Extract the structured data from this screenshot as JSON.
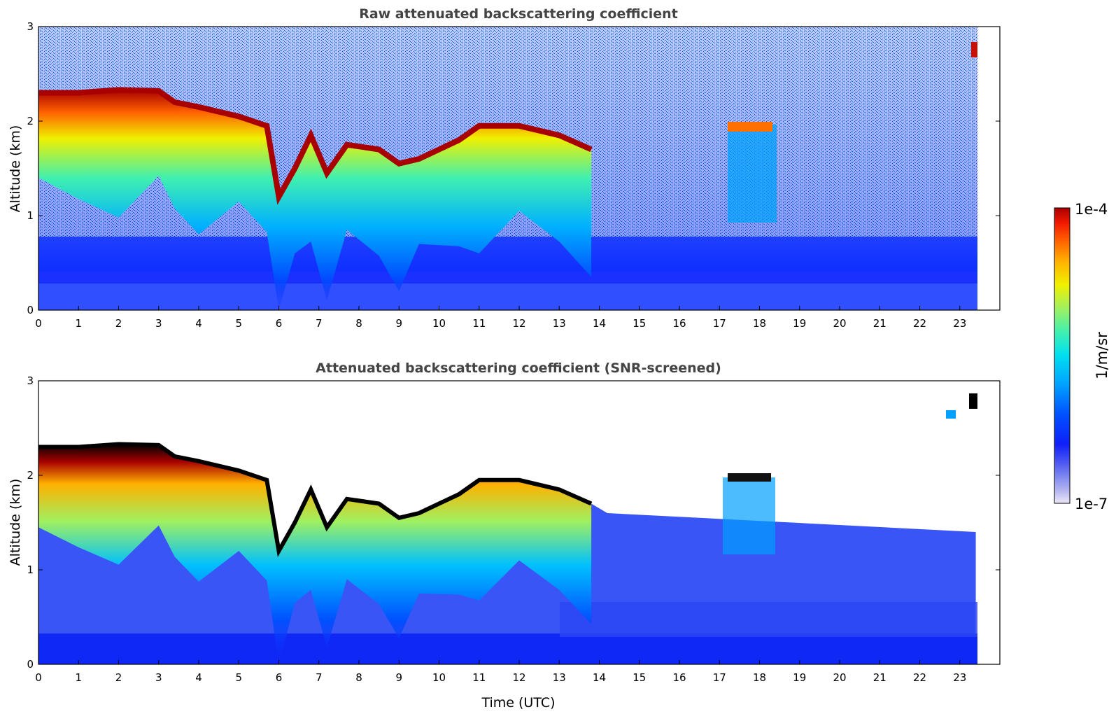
{
  "chart_data": [
    {
      "type": "heatmap",
      "title": "Raw attenuated backscattering coefficient",
      "xlabel": "",
      "ylabel": "Altitude (km)",
      "xlim": [
        0,
        24
      ],
      "ylim": [
        0,
        3
      ],
      "x_ticks": [
        "0",
        "1",
        "2",
        "3",
        "4",
        "5",
        "6",
        "7",
        "8",
        "9",
        "10",
        "11",
        "12",
        "13",
        "14",
        "15",
        "16",
        "17",
        "18",
        "19",
        "20",
        "21",
        "22",
        "23"
      ],
      "y_ticks": [
        "0",
        "1",
        "2",
        "3"
      ],
      "data_end_hour": 23.4,
      "cloud_top_km": [
        [
          0,
          2.3
        ],
        [
          1,
          2.3
        ],
        [
          2,
          2.33
        ],
        [
          3,
          2.32
        ],
        [
          3.4,
          2.2
        ],
        [
          4,
          2.15
        ],
        [
          5,
          2.05
        ],
        [
          5.7,
          1.95
        ],
        [
          6.0,
          1.2
        ],
        [
          6.4,
          1.5
        ],
        [
          6.8,
          1.85
        ],
        [
          7.2,
          1.45
        ],
        [
          7.7,
          1.75
        ],
        [
          8.5,
          1.7
        ],
        [
          9.0,
          1.55
        ],
        [
          9.5,
          1.6
        ],
        [
          10.5,
          1.8
        ],
        [
          11,
          1.95
        ],
        [
          12,
          1.95
        ],
        [
          13,
          1.85
        ],
        [
          13.8,
          1.7
        ]
      ],
      "aerosol_top_km": 0.4,
      "noise": "high"
    },
    {
      "type": "heatmap",
      "title": "Attenuated backscattering coefficient (SNR-screened)",
      "xlabel": "Time (UTC)",
      "ylabel": "Altitude (km)",
      "xlim": [
        0,
        24
      ],
      "ylim": [
        0,
        3
      ],
      "x_ticks": [
        "0",
        "1",
        "2",
        "3",
        "4",
        "5",
        "6",
        "7",
        "8",
        "9",
        "10",
        "11",
        "12",
        "13",
        "14",
        "15",
        "16",
        "17",
        "18",
        "19",
        "20",
        "21",
        "22",
        "23"
      ],
      "y_ticks": [
        "0",
        "1",
        "2",
        "3"
      ],
      "data_end_hour": 23.4,
      "screened_top_km": 1.6,
      "noise": "screened"
    }
  ],
  "colorbar": {
    "label": "1/m/sr",
    "max_label": "1e-4",
    "min_label": "1e-7",
    "colors": [
      "#ece8f8",
      "#b8b8f0",
      "#7f88f0",
      "#4a55f2",
      "#1020f8",
      "#0050ff",
      "#00a0ff",
      "#00dff0",
      "#40f0b0",
      "#a0f060",
      "#f0f000",
      "#ffb000",
      "#ff6000",
      "#f01800",
      "#a80000"
    ]
  }
}
